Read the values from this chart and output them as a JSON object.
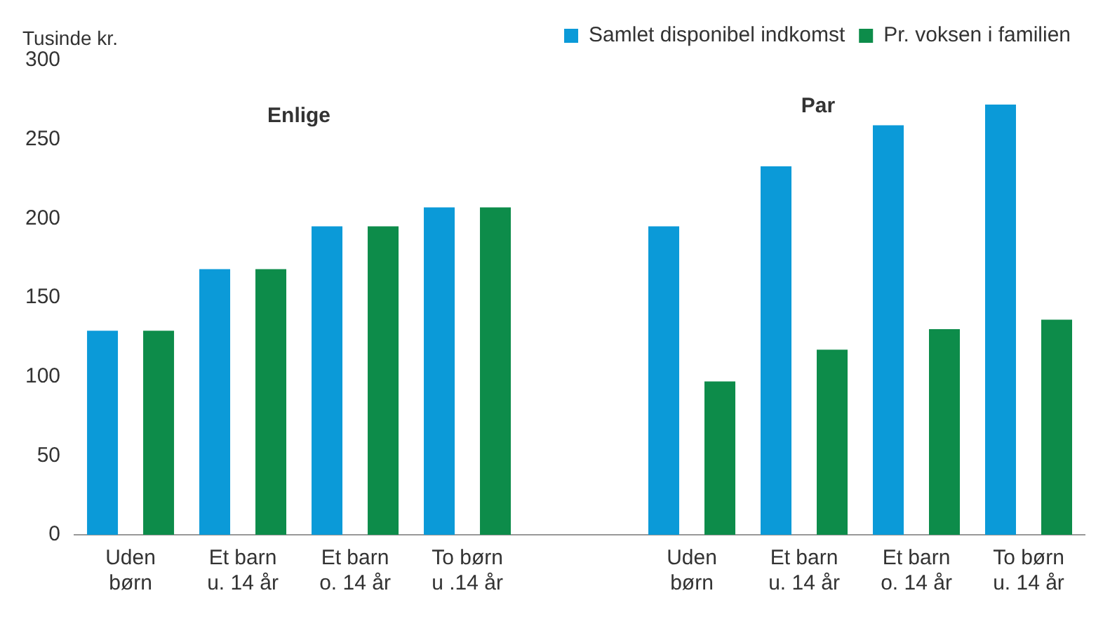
{
  "chart_data": {
    "type": "bar",
    "ylabel": "Tusinde kr.",
    "categories": [
      "Uden\nbørn",
      "Et barn\nu. 14 år",
      "Et barn\no. 14 år",
      "To børn\nu .14 år",
      null,
      "Uden\nbørn",
      "Et barn\nu. 14 år",
      "Et barn\no. 14 år",
      "To børn\nu. 14 år"
    ],
    "series": [
      {
        "name": "Samlet disponibel indkomst",
        "color": "#0b9ad8",
        "values": [
          129,
          168,
          195,
          207,
          null,
          195,
          233,
          259,
          272
        ]
      },
      {
        "name": "Pr. voksen i familien",
        "color": "#0d8c4a",
        "values": [
          129,
          168,
          195,
          207,
          null,
          97,
          117,
          130,
          136
        ]
      }
    ],
    "ylim": [
      0,
      300
    ],
    "yticks": [
      0,
      50,
      100,
      150,
      200,
      250,
      300
    ],
    "grid": false,
    "legend": "top right",
    "annotations": [
      "Enlige",
      "Par"
    ]
  }
}
